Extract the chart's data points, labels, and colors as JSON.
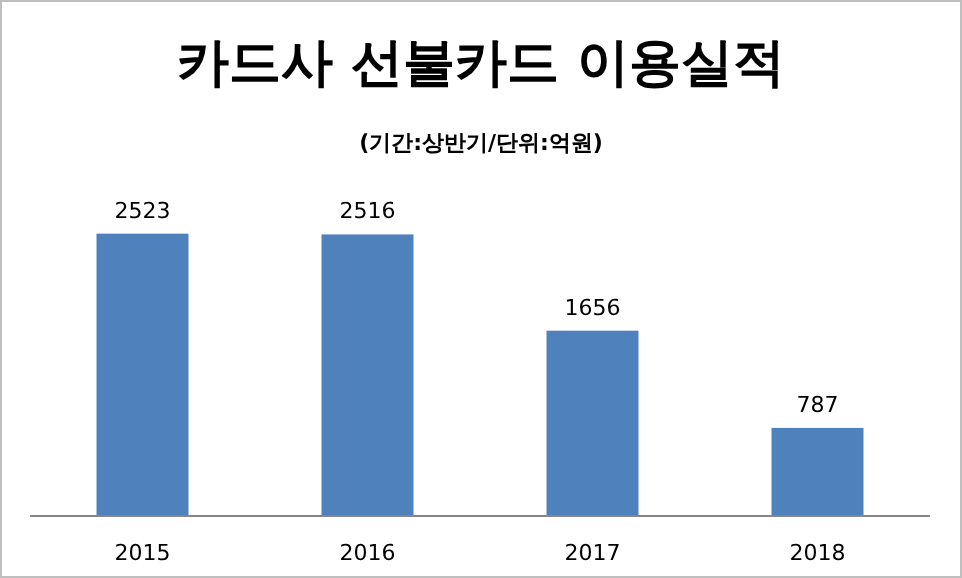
{
  "chart_data": {
    "type": "bar",
    "title": "카드사 선불카드 이용실적",
    "subtitle": "(기간:상반기/단위:억원)",
    "categories": [
      "2015",
      "2016",
      "2017",
      "2018"
    ],
    "values": [
      2523,
      2516,
      1656,
      787
    ],
    "color": "#4f81bd",
    "data_labels": true
  }
}
